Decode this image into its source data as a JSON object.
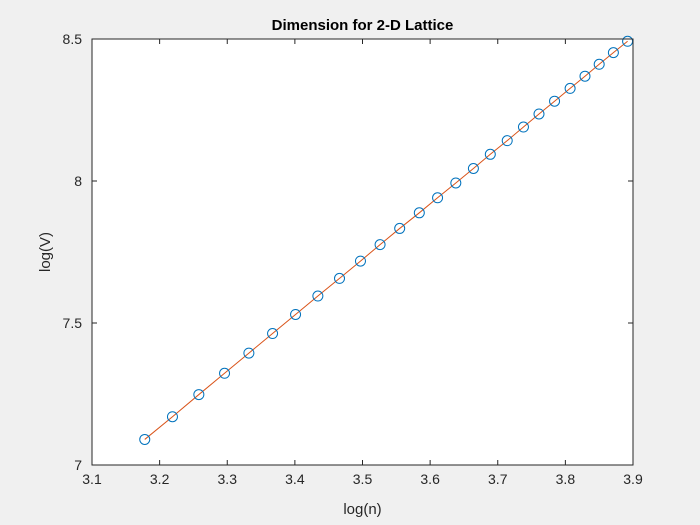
{
  "chart_data": {
    "type": "line",
    "title": "Dimension for 2-D Lattice",
    "xlabel": "log(n)",
    "ylabel": "log(V)",
    "xlim": [
      3.1,
      3.9
    ],
    "ylim": [
      7,
      8.5
    ],
    "xticks": [
      "3.1",
      "3.2",
      "3.3",
      "3.4",
      "3.5",
      "3.6",
      "3.7",
      "3.8",
      "3.9"
    ],
    "yticks": [
      "7",
      "7.5",
      "8",
      "8.5"
    ],
    "grid": false,
    "legend": "none",
    "series": [
      {
        "style": "markers",
        "marker": "circle",
        "color": "#0072bd",
        "x": [
          3.178,
          3.219,
          3.258,
          3.296,
          3.332,
          3.367,
          3.401,
          3.434,
          3.466,
          3.497,
          3.526,
          3.555,
          3.584,
          3.611,
          3.638,
          3.664,
          3.689,
          3.714,
          3.738,
          3.761,
          3.784,
          3.807,
          3.829,
          3.85,
          3.871,
          3.892
        ],
        "y": [
          7.09,
          7.17,
          7.248,
          7.323,
          7.394,
          7.463,
          7.53,
          7.595,
          7.657,
          7.718,
          7.776,
          7.833,
          7.888,
          7.941,
          7.993,
          8.044,
          8.094,
          8.142,
          8.19,
          8.236,
          8.281,
          8.326,
          8.369,
          8.411,
          8.452,
          8.492
        ]
      },
      {
        "style": "line",
        "color": "#d95319",
        "x": [
          3.178,
          3.219,
          3.258,
          3.296,
          3.332,
          3.367,
          3.401,
          3.434,
          3.466,
          3.497,
          3.526,
          3.555,
          3.584,
          3.611,
          3.638,
          3.664,
          3.689,
          3.714,
          3.738,
          3.761,
          3.784,
          3.807,
          3.829,
          3.85,
          3.871,
          3.892
        ],
        "y": [
          7.09,
          7.17,
          7.248,
          7.323,
          7.394,
          7.463,
          7.53,
          7.595,
          7.657,
          7.718,
          7.776,
          7.833,
          7.888,
          7.941,
          7.993,
          8.044,
          8.094,
          8.142,
          8.19,
          8.236,
          8.281,
          8.326,
          8.369,
          8.411,
          8.452,
          8.492
        ]
      }
    ]
  }
}
